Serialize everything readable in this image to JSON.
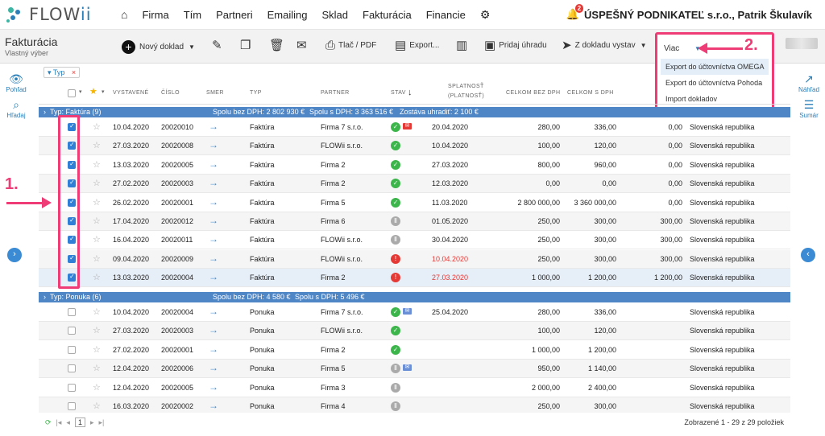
{
  "brand": {
    "logo_text": "FLOW",
    "logo_accent": "ii",
    "accent": "#2a7fb8"
  },
  "nav": {
    "items": [
      "Firma",
      "Tím",
      "Partneri",
      "Emailing",
      "Sklad",
      "Fakturácia",
      "Financie"
    ]
  },
  "header": {
    "notifications": "2",
    "company": "ÚSPEŠNÝ PODNIKATEĽ s.r.o., Patrik Škulavík"
  },
  "page": {
    "title": "Fakturácia",
    "subtitle": "Vlastný výber"
  },
  "toolbar": {
    "new_doc": "Nový doklad",
    "print_pdf": "Tlač / PDF",
    "export": "Export...",
    "add_payment": "Pridaj úhradu",
    "from_doc": "Z dokladu vystav",
    "more": "Viac"
  },
  "more_menu": [
    "Export do účtovníctva OMEGA",
    "Export do účtovníctva Pohoda",
    "Import dokladov"
  ],
  "annotations": {
    "one": "1.",
    "two": "2."
  },
  "sidebar_left": {
    "view": "Pohľad",
    "search": "Hľadaj"
  },
  "sidebar_right": {
    "preview": "Náhľad",
    "summary": "Sumár"
  },
  "filter": {
    "chip": "Typ"
  },
  "columns": {
    "issued": "VYSTAVENÉ",
    "number": "ČÍSLO",
    "direction": "SMER",
    "type": "TYP",
    "partner": "PARTNER",
    "status": "STAV",
    "due": "SPLATNOSŤ",
    "validity": "(PLATNOSŤ)",
    "total_net": "CELKOM BEZ DPH",
    "total_gross": "CELKOM S DPH"
  },
  "groups": {
    "invoice": {
      "label": "Typ: Faktúra (9)",
      "net": "Spolu bez DPH: 2 802 930 €",
      "gross": "Spolu s DPH: 3 363 516 €",
      "remaining": "Zostáva uhradiť: 2 100 €"
    },
    "offer": {
      "label": "Typ: Ponuka (6)",
      "net": "Spolu bez DPH: 4 580 €",
      "gross": "Spolu s DPH: 5 496 €"
    }
  },
  "invoice_rows": [
    {
      "date": "10.04.2020",
      "num": "20020010",
      "type": "Faktúra",
      "partner": "Firma 7 s.r.o.",
      "status": "ok",
      "mail": "red",
      "due": "20.04.2020",
      "net": "280,00",
      "gross": "336,00",
      "rem": "0,00",
      "country": "Slovenská republika",
      "overdue": false
    },
    {
      "date": "27.03.2020",
      "num": "20020008",
      "type": "Faktúra",
      "partner": "FLOWii s.r.o.",
      "status": "ok",
      "mail": "",
      "due": "10.04.2020",
      "net": "100,00",
      "gross": "120,00",
      "rem": "0,00",
      "country": "Slovenská republika",
      "overdue": false
    },
    {
      "date": "13.03.2020",
      "num": "20020005",
      "type": "Faktúra",
      "partner": "Firma 2",
      "status": "ok",
      "mail": "",
      "due": "27.03.2020",
      "net": "800,00",
      "gross": "960,00",
      "rem": "0,00",
      "country": "Slovenská republika",
      "overdue": false
    },
    {
      "date": "27.02.2020",
      "num": "20020003",
      "type": "Faktúra",
      "partner": "Firma 2",
      "status": "ok",
      "mail": "",
      "due": "12.03.2020",
      "net": "0,00",
      "gross": "0,00",
      "rem": "0,00",
      "country": "Slovenská republika",
      "overdue": false
    },
    {
      "date": "26.02.2020",
      "num": "20020001",
      "type": "Faktúra",
      "partner": "Firma 5",
      "status": "ok",
      "mail": "",
      "due": "11.03.2020",
      "net": "2 800 000,00",
      "gross": "3 360 000,00",
      "rem": "0,00",
      "country": "Slovenská republika",
      "overdue": false
    },
    {
      "date": "17.04.2020",
      "num": "20020012",
      "type": "Faktúra",
      "partner": "Firma 6",
      "status": "wait",
      "mail": "",
      "due": "01.05.2020",
      "net": "250,00",
      "gross": "300,00",
      "rem": "300,00",
      "country": "Slovenská republika",
      "overdue": false
    },
    {
      "date": "16.04.2020",
      "num": "20020011",
      "type": "Faktúra",
      "partner": "FLOWii s.r.o.",
      "status": "wait",
      "mail": "",
      "due": "30.04.2020",
      "net": "250,00",
      "gross": "300,00",
      "rem": "300,00",
      "country": "Slovenská republika",
      "overdue": false
    },
    {
      "date": "09.04.2020",
      "num": "20020009",
      "type": "Faktúra",
      "partner": "FLOWii s.r.o.",
      "status": "err",
      "mail": "",
      "due": "10.04.2020",
      "net": "250,00",
      "gross": "300,00",
      "rem": "300,00",
      "country": "Slovenská republika",
      "overdue": true
    },
    {
      "date": "13.03.2020",
      "num": "20020004",
      "type": "Faktúra",
      "partner": "Firma 2",
      "status": "err",
      "mail": "",
      "due": "27.03.2020",
      "net": "1 000,00",
      "gross": "1 200,00",
      "rem": "1 200,00",
      "country": "Slovenská republika",
      "overdue": true
    }
  ],
  "offer_rows": [
    {
      "date": "10.04.2020",
      "num": "20020004",
      "type": "Ponuka",
      "partner": "Firma 7 s.r.o.",
      "status": "ok",
      "mail": "blue",
      "due": "25.04.2020",
      "net": "280,00",
      "gross": "336,00",
      "rem": "",
      "country": "Slovenská republika",
      "overdue": false
    },
    {
      "date": "27.03.2020",
      "num": "20020003",
      "type": "Ponuka",
      "partner": "FLOWii s.r.o.",
      "status": "ok",
      "mail": "",
      "due": "",
      "net": "100,00",
      "gross": "120,00",
      "rem": "",
      "country": "Slovenská republika",
      "overdue": false
    },
    {
      "date": "27.02.2020",
      "num": "20020001",
      "type": "Ponuka",
      "partner": "Firma 2",
      "status": "ok",
      "mail": "",
      "due": "",
      "net": "1 000,00",
      "gross": "1 200,00",
      "rem": "",
      "country": "Slovenská republika",
      "overdue": false
    },
    {
      "date": "12.04.2020",
      "num": "20020006",
      "type": "Ponuka",
      "partner": "Firma 5",
      "status": "wait",
      "mail": "blue",
      "due": "",
      "net": "950,00",
      "gross": "1 140,00",
      "rem": "",
      "country": "Slovenská republika",
      "overdue": false
    },
    {
      "date": "12.04.2020",
      "num": "20020005",
      "type": "Ponuka",
      "partner": "Firma 3",
      "status": "wait",
      "mail": "",
      "due": "",
      "net": "2 000,00",
      "gross": "2 400,00",
      "rem": "",
      "country": "Slovenská republika",
      "overdue": false
    },
    {
      "date": "16.03.2020",
      "num": "20020002",
      "type": "Ponuka",
      "partner": "Firma 4",
      "status": "wait",
      "mail": "",
      "due": "",
      "net": "250,00",
      "gross": "300,00",
      "rem": "",
      "country": "Slovenská republika",
      "overdue": false
    }
  ],
  "footer": {
    "page": "1",
    "summary": "Zobrazené 1 - 29 z 29 položiek"
  }
}
